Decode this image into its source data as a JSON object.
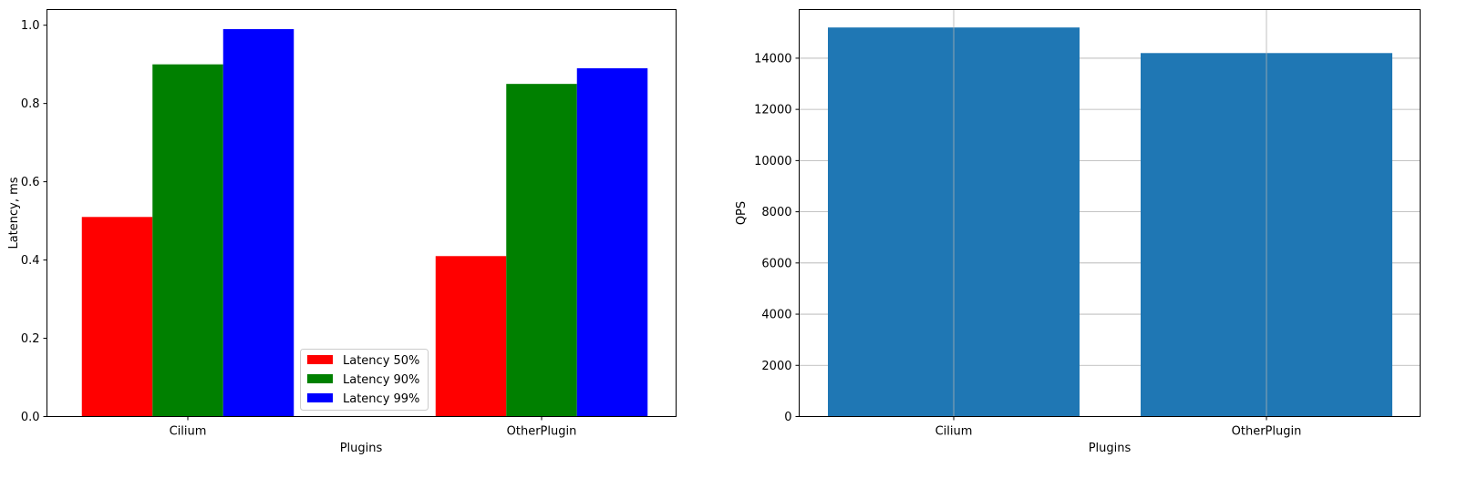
{
  "chart_data": [
    {
      "type": "bar",
      "categories": [
        "Cilium",
        "OtherPlugin"
      ],
      "series": [
        {
          "name": "Latency 50%",
          "color": "#ff0000",
          "values": [
            0.51,
            0.41
          ]
        },
        {
          "name": "Latency 90%",
          "color": "#008000",
          "values": [
            0.9,
            0.85
          ]
        },
        {
          "name": "Latency 99%",
          "color": "#0000ff",
          "values": [
            0.99,
            0.89
          ]
        }
      ],
      "title": "",
      "xlabel": "Plugins",
      "ylabel": "Latency, ms",
      "ylim": [
        0,
        1.04
      ],
      "yticks": [
        0.0,
        0.2,
        0.4,
        0.6,
        0.8,
        1.0
      ],
      "ytick_labels": [
        "0.0",
        "0.2",
        "0.4",
        "0.6",
        "0.8",
        "1.0"
      ],
      "grid": false,
      "legend_position": "lower center"
    },
    {
      "type": "bar",
      "categories": [
        "Cilium",
        "OtherPlugin"
      ],
      "series": [
        {
          "color": "#1f77b4",
          "values": [
            15200,
            14200
          ]
        }
      ],
      "title": "",
      "xlabel": "Plugins",
      "ylabel": "QPS",
      "ylim": [
        0,
        15900
      ],
      "yticks": [
        0,
        2000,
        4000,
        6000,
        8000,
        10000,
        12000,
        14000
      ],
      "ytick_labels": [
        "0",
        "2000",
        "4000",
        "6000",
        "8000",
        "10000",
        "12000",
        "14000"
      ],
      "grid": true
    }
  ]
}
